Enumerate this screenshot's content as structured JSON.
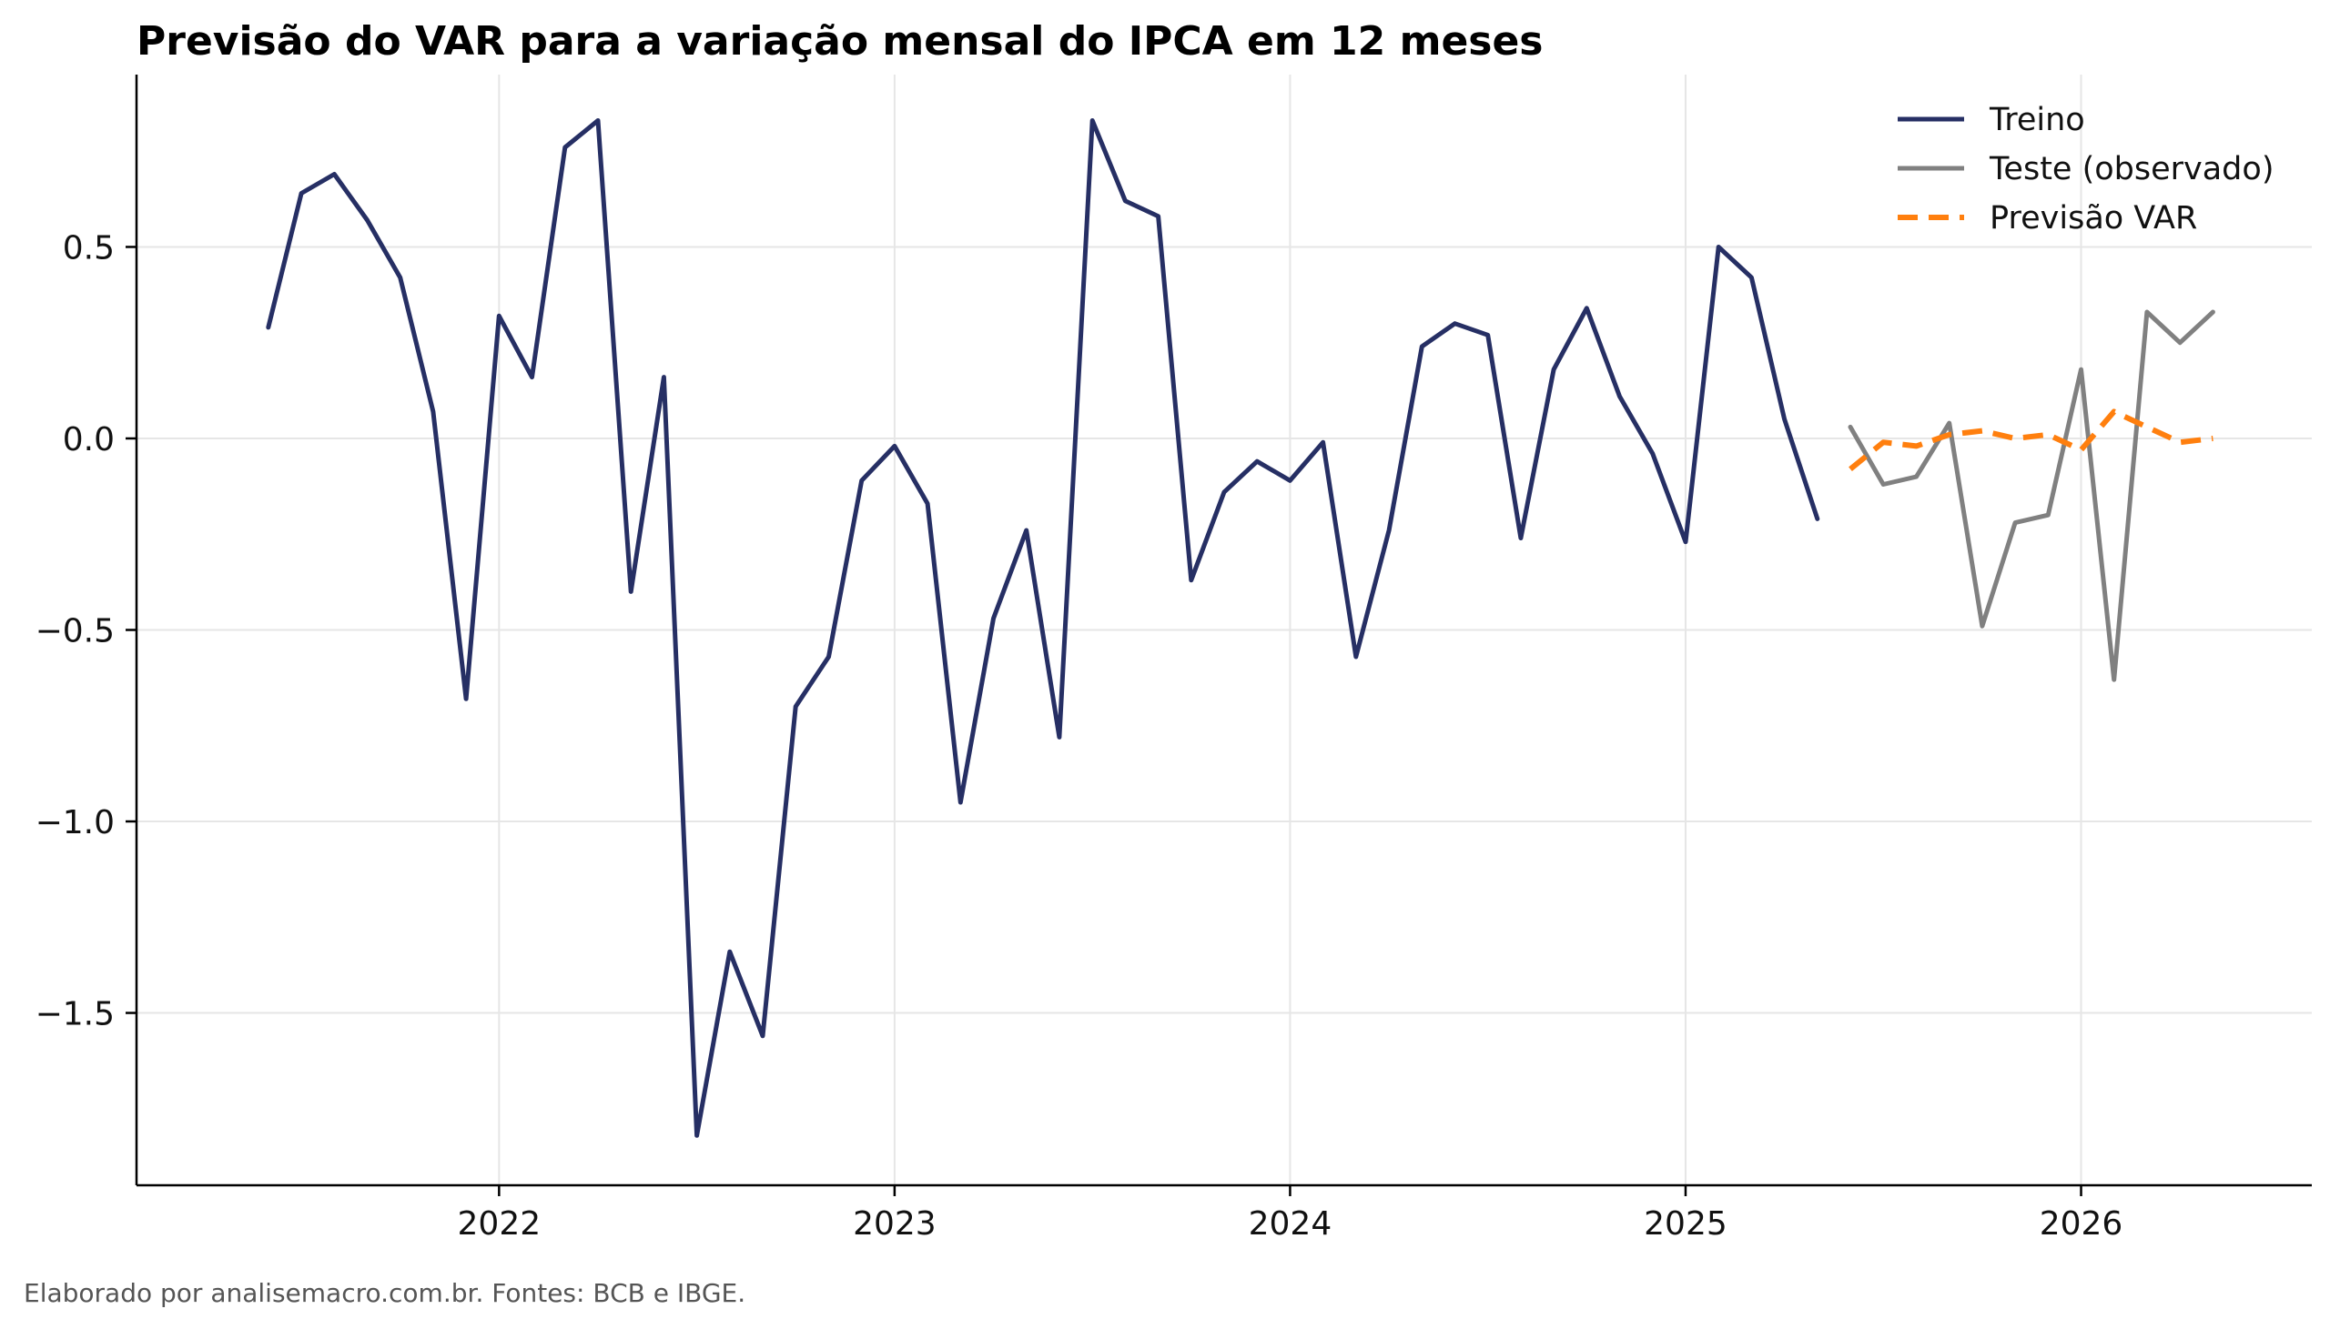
{
  "chart_data": {
    "type": "line",
    "title": "Previsão do VAR para a variação mensal do IPCA em 12 meses",
    "xlabel": "",
    "ylabel": "",
    "x_ticks": [
      "2022",
      "2023",
      "2024",
      "2025",
      "2026"
    ],
    "y_ticks": [
      0.5,
      0.0,
      -0.5,
      -1.0,
      -1.5
    ],
    "y_tick_labels": [
      "0.5",
      "0.0",
      "−0.5",
      "−1.0",
      "−1.5"
    ],
    "ylim": [
      -1.95,
      0.95
    ],
    "xlim": [
      "2021-02",
      "2026-08"
    ],
    "grid": true,
    "legend_position": "top-right",
    "footer": "Elaborado por analisemacro.com.br. Fontes: BCB e IBGE.",
    "series": [
      {
        "name": "Treino",
        "color": "#262f64",
        "style": "solid",
        "x": [
          "2021-06",
          "2021-07",
          "2021-08",
          "2021-09",
          "2021-10",
          "2021-11",
          "2021-12",
          "2022-01",
          "2022-02",
          "2022-03",
          "2022-04",
          "2022-05",
          "2022-06",
          "2022-07",
          "2022-08",
          "2022-09",
          "2022-10",
          "2022-11",
          "2022-12",
          "2023-01",
          "2023-02",
          "2023-03",
          "2023-04",
          "2023-05",
          "2023-06",
          "2023-07",
          "2023-08",
          "2023-09",
          "2023-10",
          "2023-11",
          "2023-12",
          "2024-01",
          "2024-02",
          "2024-03",
          "2024-04",
          "2024-05",
          "2024-06",
          "2024-07",
          "2024-08",
          "2024-09",
          "2024-10",
          "2024-11",
          "2024-12",
          "2025-01",
          "2025-02",
          "2025-03",
          "2025-04",
          "2025-05"
        ],
        "values": [
          0.29,
          0.64,
          0.69,
          0.57,
          0.42,
          0.07,
          -0.68,
          0.32,
          0.16,
          0.76,
          0.83,
          -0.4,
          0.16,
          -1.82,
          -1.34,
          -1.56,
          -0.7,
          -0.57,
          -0.11,
          -0.02,
          -0.17,
          -0.95,
          -0.47,
          -0.24,
          -0.78,
          0.83,
          0.62,
          0.58,
          -0.37,
          -0.14,
          -0.06,
          -0.11,
          -0.01,
          -0.57,
          -0.24,
          0.24,
          0.3,
          0.27,
          -0.26,
          0.18,
          0.34,
          0.11,
          -0.04,
          -0.27,
          0.5,
          0.42,
          0.05,
          -0.21
        ]
      },
      {
        "name": "Teste (observado)",
        "color": "#808080",
        "style": "solid",
        "x": [
          "2025-06",
          "2025-07",
          "2025-08",
          "2025-09",
          "2025-10",
          "2025-11",
          "2025-12",
          "2026-01",
          "2026-02",
          "2026-03",
          "2026-04",
          "2026-05"
        ],
        "values": [
          0.03,
          -0.12,
          -0.1,
          0.04,
          -0.49,
          -0.22,
          -0.2,
          0.18,
          -0.63,
          0.33,
          0.25,
          0.33
        ]
      },
      {
        "name": "Previsão VAR",
        "color": "#ff7f0e",
        "style": "dashed",
        "x": [
          "2025-06",
          "2025-07",
          "2025-08",
          "2025-09",
          "2025-10",
          "2025-11",
          "2025-12",
          "2026-01",
          "2026-02",
          "2026-03",
          "2026-04",
          "2026-05"
        ],
        "values": [
          -0.08,
          -0.01,
          -0.02,
          0.01,
          0.02,
          0.0,
          0.01,
          -0.03,
          0.07,
          0.03,
          -0.01,
          0.0
        ]
      }
    ]
  }
}
